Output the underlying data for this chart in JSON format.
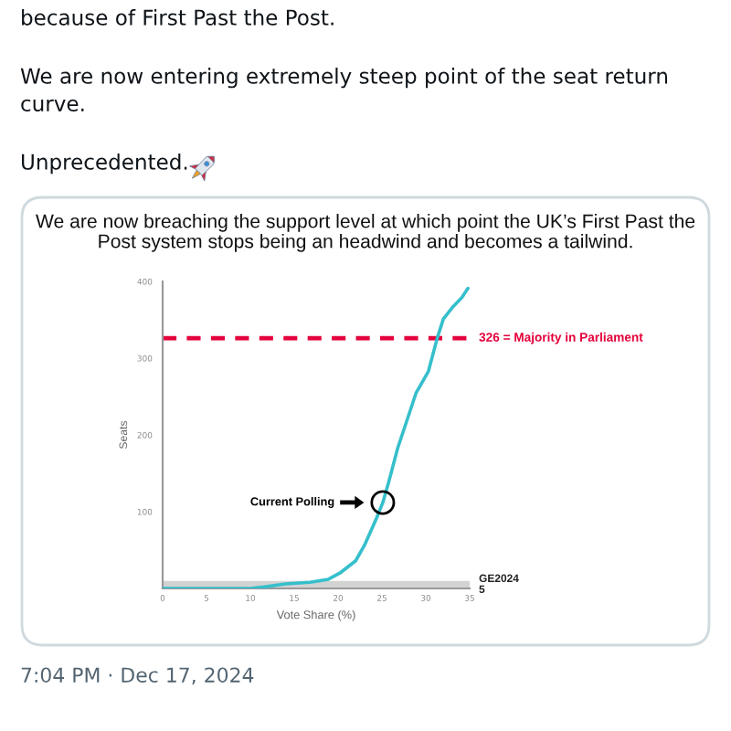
{
  "chart_data": {
    "type": "line",
    "title": "We are now breaching the support level at which point the UK’s First Past the Post system stops being an headwind and becomes a tailwind.",
    "xlabel": "Vote Share (%)",
    "ylabel": "Seats",
    "x": [
      0,
      5,
      10,
      11.6,
      14,
      16.8,
      18.9,
      20.2,
      22,
      23,
      24.4,
      25.1,
      25.8,
      26.8,
      28.2,
      28.9,
      30.3,
      31.3,
      32,
      33.1,
      34.1,
      34.8
    ],
    "series": [
      {
        "color": "#35bfcb",
        "values": [
          0,
          0,
          0,
          2,
          6,
          8,
          12,
          20,
          36,
          56,
          92,
          112,
          140,
          183,
          231,
          255,
          283,
          326,
          351,
          367,
          379,
          391
        ]
      }
    ],
    "xlim": [
      0,
      35
    ],
    "ylim": [
      0,
      400
    ],
    "xticks": [
      0,
      5,
      10,
      15,
      20,
      25,
      30,
      35
    ],
    "yticks": [
      100,
      200,
      300,
      400
    ],
    "ref_lines": [
      {
        "axis": "y",
        "value": 326,
        "label": "326 = Majority in Parliament",
        "color": "#e4003b",
        "line_style": "dashed"
      },
      {
        "axis": "y",
        "value": 5,
        "label": "GE2024\n5",
        "color": "#d3d3d3",
        "line_style": "solid"
      }
    ],
    "annotations": [
      "because of First Past the Post.",
      "We are now entering extremely steep point of the seat return curve.",
      "Unprecedented.",
      "Current Polling",
      "7:04 PM · Dec 17, 2024"
    ],
    "grid": false,
    "legend": false,
    "marker": "none",
    "line_style": "solid"
  }
}
